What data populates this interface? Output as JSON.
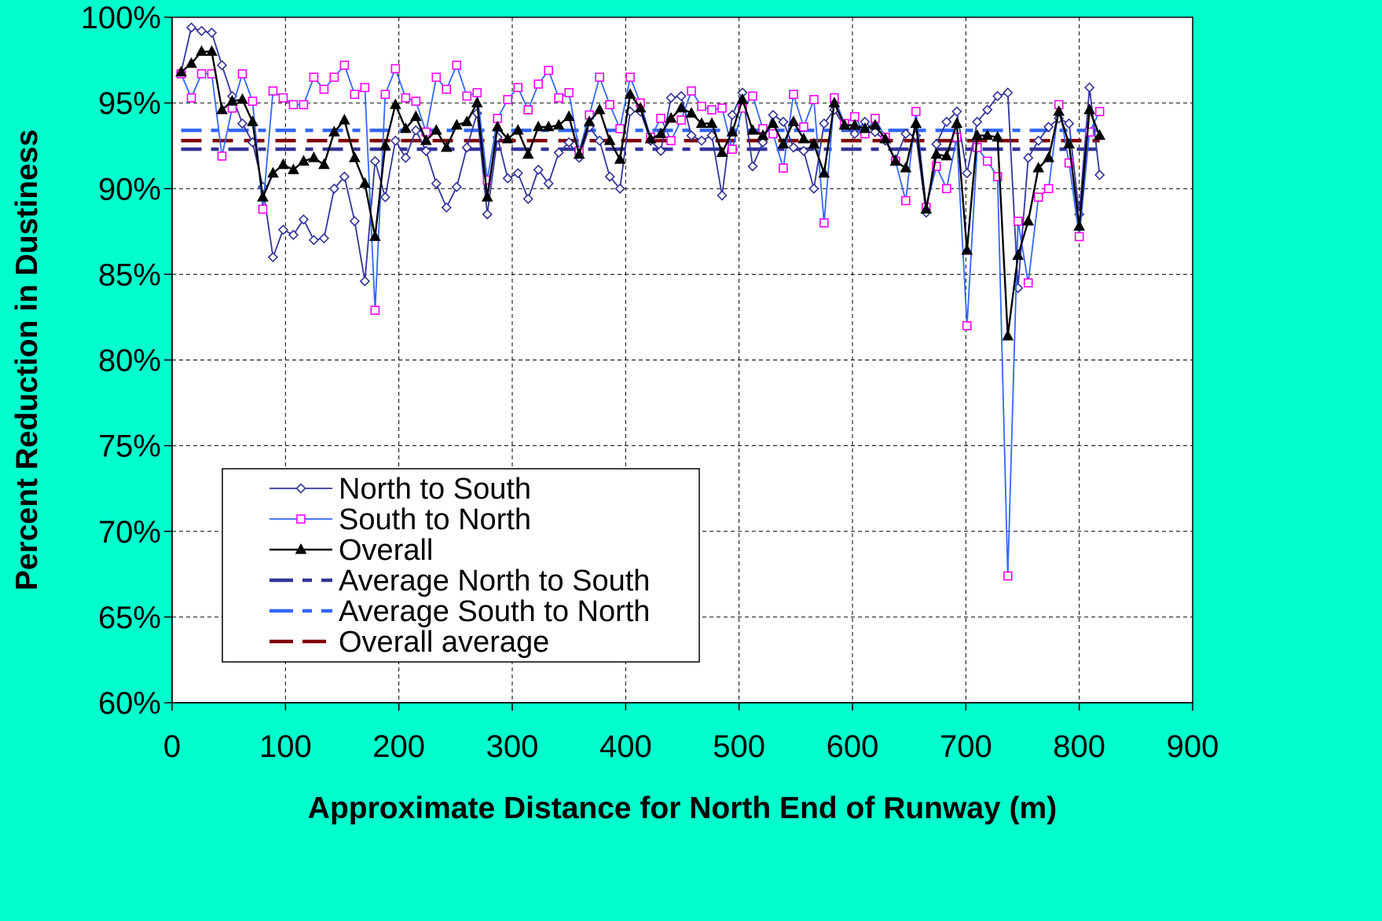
{
  "chart_data": {
    "type": "line",
    "xlabel": "Approximate Distance for North End of Runway (m)",
    "ylabel": "Percent Reduction in Dustiness",
    "xlim": [
      0,
      900
    ],
    "ylim": [
      60,
      100
    ],
    "x_ticks": [
      0,
      100,
      200,
      300,
      400,
      500,
      600,
      700,
      800,
      900
    ],
    "x_tick_labels": [
      "0",
      "100",
      "200",
      "300",
      "400",
      "500",
      "600",
      "700",
      "800",
      "900"
    ],
    "y_ticks": [
      60,
      65,
      70,
      75,
      80,
      85,
      90,
      95,
      100
    ],
    "y_tick_labels": [
      "60%",
      "65%",
      "70%",
      "75%",
      "80%",
      "85%",
      "90%",
      "95%",
      "100%"
    ],
    "grid": true,
    "legend_position": "bottom-left",
    "background_color": "#00FFCC",
    "plot_background_color": "#FFFFFF",
    "series": [
      {
        "name": "North to South",
        "color": "#333399",
        "marker": "diamond-open",
        "line": "solid",
        "points": [
          [
            8,
            96.8
          ],
          [
            17,
            99.4
          ],
          [
            26,
            99.2
          ],
          [
            35,
            99.1
          ],
          [
            44,
            97.2
          ],
          [
            53,
            95.4
          ],
          [
            62,
            93.8
          ],
          [
            71,
            92.7
          ],
          [
            80,
            90.1
          ],
          [
            89,
            86.0
          ],
          [
            98,
            87.6
          ],
          [
            107,
            87.3
          ],
          [
            116,
            88.2
          ],
          [
            125,
            87.0
          ],
          [
            134,
            87.1
          ],
          [
            143,
            90.0
          ],
          [
            152,
            90.7
          ],
          [
            161,
            88.1
          ],
          [
            170,
            84.6
          ],
          [
            179,
            91.6
          ],
          [
            188,
            89.5
          ],
          [
            197,
            92.8
          ],
          [
            206,
            91.8
          ],
          [
            215,
            93.4
          ],
          [
            224,
            92.2
          ],
          [
            233,
            90.3
          ],
          [
            242,
            88.9
          ],
          [
            251,
            90.1
          ],
          [
            260,
            92.4
          ],
          [
            269,
            94.4
          ],
          [
            278,
            88.5
          ],
          [
            287,
            93.0
          ],
          [
            296,
            90.6
          ],
          [
            305,
            90.9
          ],
          [
            314,
            89.4
          ],
          [
            323,
            91.1
          ],
          [
            332,
            90.3
          ],
          [
            341,
            92.1
          ],
          [
            350,
            92.7
          ],
          [
            359,
            91.8
          ],
          [
            368,
            93.6
          ],
          [
            377,
            92.8
          ],
          [
            386,
            90.7
          ],
          [
            395,
            90.0
          ],
          [
            404,
            94.5
          ],
          [
            413,
            94.5
          ],
          [
            422,
            92.8
          ],
          [
            431,
            92.2
          ],
          [
            440,
            95.3
          ],
          [
            449,
            95.4
          ],
          [
            458,
            93.1
          ],
          [
            467,
            92.8
          ],
          [
            476,
            93.1
          ],
          [
            485,
            89.6
          ],
          [
            494,
            94.3
          ],
          [
            503,
            95.6
          ],
          [
            512,
            91.3
          ],
          [
            521,
            92.7
          ],
          [
            530,
            94.3
          ],
          [
            539,
            93.9
          ],
          [
            548,
            92.4
          ],
          [
            557,
            92.2
          ],
          [
            566,
            90.0
          ],
          [
            575,
            93.8
          ],
          [
            584,
            94.6
          ],
          [
            593,
            93.6
          ],
          [
            602,
            93.2
          ],
          [
            611,
            93.9
          ],
          [
            620,
            93.3
          ],
          [
            629,
            92.8
          ],
          [
            638,
            91.7
          ],
          [
            647,
            93.2
          ],
          [
            656,
            93.1
          ],
          [
            665,
            88.6
          ],
          [
            674,
            92.6
          ],
          [
            683,
            93.9
          ],
          [
            692,
            94.5
          ],
          [
            701,
            90.9
          ],
          [
            710,
            93.9
          ],
          [
            719,
            94.6
          ],
          [
            728,
            95.4
          ],
          [
            737,
            95.6
          ],
          [
            746,
            84.2
          ],
          [
            755,
            91.8
          ],
          [
            764,
            92.8
          ],
          [
            773,
            93.6
          ],
          [
            782,
            94.1
          ],
          [
            791,
            93.8
          ],
          [
            800,
            88.5
          ],
          [
            809,
            95.9
          ],
          [
            818,
            90.8
          ]
        ]
      },
      {
        "name": "South to North",
        "color": "#3366FF",
        "marker": "square-open",
        "marker_color": "#FF00FF",
        "line": "solid",
        "points": [
          [
            8,
            96.7
          ],
          [
            17,
            95.3
          ],
          [
            26,
            96.7
          ],
          [
            35,
            96.7
          ],
          [
            44,
            91.9
          ],
          [
            53,
            94.7
          ],
          [
            62,
            96.7
          ],
          [
            71,
            95.1
          ],
          [
            80,
            88.8
          ],
          [
            89,
            95.7
          ],
          [
            98,
            95.3
          ],
          [
            107,
            94.9
          ],
          [
            116,
            94.9
          ],
          [
            125,
            96.5
          ],
          [
            134,
            95.8
          ],
          [
            143,
            96.5
          ],
          [
            152,
            97.2
          ],
          [
            161,
            95.5
          ],
          [
            170,
            95.9
          ],
          [
            179,
            82.9
          ],
          [
            188,
            95.5
          ],
          [
            197,
            97.0
          ],
          [
            206,
            95.3
          ],
          [
            215,
            95.1
          ],
          [
            224,
            93.3
          ],
          [
            233,
            96.5
          ],
          [
            242,
            95.8
          ],
          [
            251,
            97.2
          ],
          [
            260,
            95.4
          ],
          [
            269,
            95.6
          ],
          [
            278,
            90.5
          ],
          [
            287,
            94.1
          ],
          [
            296,
            95.2
          ],
          [
            305,
            95.9
          ],
          [
            314,
            94.6
          ],
          [
            323,
            96.1
          ],
          [
            332,
            96.9
          ],
          [
            341,
            95.3
          ],
          [
            350,
            95.6
          ],
          [
            359,
            92.2
          ],
          [
            368,
            94.3
          ],
          [
            377,
            96.5
          ],
          [
            386,
            94.9
          ],
          [
            395,
            93.5
          ],
          [
            404,
            96.5
          ],
          [
            413,
            95.0
          ],
          [
            422,
            93.0
          ],
          [
            431,
            94.1
          ],
          [
            440,
            92.8
          ],
          [
            449,
            94.0
          ],
          [
            458,
            95.7
          ],
          [
            467,
            94.8
          ],
          [
            476,
            94.6
          ],
          [
            485,
            94.7
          ],
          [
            494,
            92.3
          ],
          [
            503,
            94.7
          ],
          [
            512,
            95.4
          ],
          [
            521,
            93.5
          ],
          [
            530,
            93.2
          ],
          [
            539,
            91.2
          ],
          [
            548,
            95.5
          ],
          [
            557,
            93.6
          ],
          [
            566,
            95.2
          ],
          [
            575,
            88.0
          ],
          [
            584,
            95.3
          ],
          [
            593,
            93.8
          ],
          [
            602,
            94.2
          ],
          [
            611,
            93.2
          ],
          [
            620,
            94.1
          ],
          [
            629,
            93.0
          ],
          [
            638,
            91.6
          ],
          [
            647,
            89.3
          ],
          [
            656,
            94.5
          ],
          [
            665,
            88.9
          ],
          [
            674,
            91.3
          ],
          [
            683,
            90.0
          ],
          [
            692,
            93.0
          ],
          [
            701,
            82.0
          ],
          [
            710,
            92.4
          ],
          [
            719,
            91.6
          ],
          [
            728,
            90.7
          ],
          [
            737,
            67.4
          ],
          [
            746,
            88.1
          ],
          [
            755,
            84.5
          ],
          [
            764,
            89.5
          ],
          [
            773,
            90.0
          ],
          [
            782,
            94.9
          ],
          [
            791,
            91.5
          ],
          [
            800,
            87.2
          ],
          [
            809,
            93.3
          ],
          [
            818,
            94.5
          ]
        ]
      },
      {
        "name": "Overall",
        "color": "#000000",
        "marker": "triangle-filled",
        "line": "solid",
        "points": [
          [
            8,
            96.8
          ],
          [
            17,
            97.3
          ],
          [
            26,
            98.0
          ],
          [
            35,
            98.0
          ],
          [
            44,
            94.6
          ],
          [
            53,
            95.1
          ],
          [
            62,
            95.2
          ],
          [
            71,
            93.9
          ],
          [
            80,
            89.5
          ],
          [
            89,
            90.9
          ],
          [
            98,
            91.4
          ],
          [
            107,
            91.1
          ],
          [
            116,
            91.6
          ],
          [
            125,
            91.8
          ],
          [
            134,
            91.4
          ],
          [
            143,
            93.3
          ],
          [
            152,
            94.0
          ],
          [
            161,
            91.8
          ],
          [
            170,
            90.3
          ],
          [
            179,
            87.2
          ],
          [
            188,
            92.5
          ],
          [
            197,
            94.9
          ],
          [
            206,
            93.5
          ],
          [
            215,
            94.2
          ],
          [
            224,
            92.8
          ],
          [
            233,
            93.4
          ],
          [
            242,
            92.4
          ],
          [
            251,
            93.7
          ],
          [
            260,
            93.9
          ],
          [
            269,
            95.0
          ],
          [
            278,
            89.5
          ],
          [
            287,
            93.6
          ],
          [
            296,
            92.9
          ],
          [
            305,
            93.4
          ],
          [
            314,
            92.0
          ],
          [
            323,
            93.6
          ],
          [
            332,
            93.6
          ],
          [
            341,
            93.7
          ],
          [
            350,
            94.2
          ],
          [
            359,
            92.0
          ],
          [
            368,
            93.9
          ],
          [
            377,
            94.6
          ],
          [
            386,
            92.8
          ],
          [
            395,
            91.7
          ],
          [
            404,
            95.5
          ],
          [
            413,
            94.7
          ],
          [
            422,
            92.9
          ],
          [
            431,
            93.2
          ],
          [
            440,
            94.1
          ],
          [
            449,
            94.7
          ],
          [
            458,
            94.4
          ],
          [
            467,
            93.8
          ],
          [
            476,
            93.8
          ],
          [
            485,
            92.1
          ],
          [
            494,
            93.3
          ],
          [
            503,
            95.2
          ],
          [
            512,
            93.4
          ],
          [
            521,
            93.1
          ],
          [
            530,
            93.8
          ],
          [
            539,
            92.6
          ],
          [
            548,
            93.9
          ],
          [
            557,
            92.9
          ],
          [
            566,
            92.6
          ],
          [
            575,
            90.9
          ],
          [
            584,
            95.0
          ],
          [
            593,
            93.7
          ],
          [
            602,
            93.7
          ],
          [
            611,
            93.5
          ],
          [
            620,
            93.7
          ],
          [
            629,
            92.9
          ],
          [
            638,
            91.6
          ],
          [
            647,
            91.2
          ],
          [
            656,
            93.8
          ],
          [
            665,
            88.8
          ],
          [
            674,
            92.0
          ],
          [
            683,
            91.9
          ],
          [
            692,
            93.8
          ],
          [
            701,
            86.4
          ],
          [
            710,
            93.1
          ],
          [
            719,
            93.1
          ],
          [
            728,
            93.0
          ],
          [
            737,
            81.4
          ],
          [
            746,
            86.1
          ],
          [
            755,
            88.1
          ],
          [
            764,
            91.2
          ],
          [
            773,
            91.8
          ],
          [
            782,
            94.5
          ],
          [
            791,
            92.6
          ],
          [
            800,
            87.8
          ],
          [
            809,
            94.6
          ],
          [
            818,
            93.1
          ]
        ]
      },
      {
        "name": "Average North to South",
        "color": "#333399",
        "line": "dash-dot",
        "x_range": [
          8,
          818
        ],
        "value": 92.3
      },
      {
        "name": "Average South to North",
        "color": "#3366FF",
        "line": "dash-dot",
        "x_range": [
          8,
          818
        ],
        "value": 93.4
      },
      {
        "name": "Overall average",
        "color": "#800000",
        "line": "dashed",
        "x_range": [
          8,
          818
        ],
        "value": 92.8
      }
    ]
  }
}
